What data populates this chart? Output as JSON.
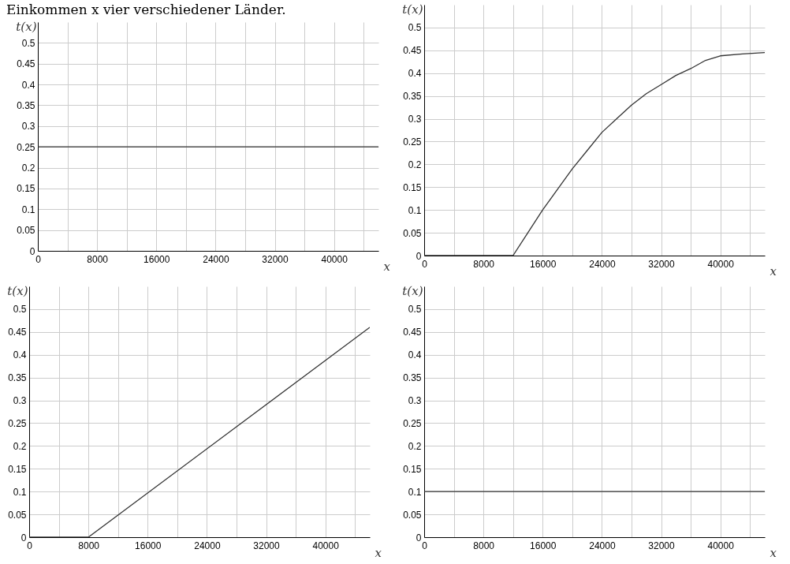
{
  "chart_data": [
    {
      "type": "line",
      "title": "Einkommen x vier verschiedener Länder.",
      "xlabel": "x",
      "ylabel": "t(x)",
      "x": [
        0,
        46000
      ],
      "values": [
        0.25,
        0.25
      ],
      "color": "#333333",
      "xlim": [
        0,
        46000
      ],
      "ylim": [
        0,
        0.55
      ],
      "xticks": [
        0,
        {
          "value": 4000,
          "label": null
        },
        8000,
        {
          "value": 12000,
          "label": null
        },
        16000,
        {
          "value": 20000,
          "label": null
        },
        24000,
        {
          "value": 28000,
          "label": null
        },
        32000,
        {
          "value": 36000,
          "label": null
        },
        40000,
        {
          "value": 44000,
          "label": null
        }
      ],
      "yticks": [
        0,
        0.05,
        0.1,
        0.15,
        0.2,
        0.25,
        0.3,
        0.35,
        0.4,
        0.45,
        0.5
      ],
      "grid": true
    },
    {
      "type": "line",
      "xlabel": "x",
      "ylabel": "t(x)",
      "x": [
        0,
        12000,
        14000,
        16000,
        18000,
        20000,
        22000,
        24000,
        26000,
        28000,
        30000,
        32000,
        34000,
        36000,
        38000,
        40000,
        43000,
        46000
      ],
      "values": [
        0,
        0,
        0.05,
        0.1,
        0.145,
        0.19,
        0.23,
        0.27,
        0.3,
        0.33,
        0.355,
        0.375,
        0.395,
        0.41,
        0.428,
        0.438,
        0.442,
        0.445
      ],
      "color": "#333333",
      "xlim": [
        0,
        46000
      ],
      "ylim": [
        0,
        0.55
      ],
      "xticks": [
        0,
        {
          "value": 4000,
          "label": null
        },
        8000,
        {
          "value": 12000,
          "label": null
        },
        16000,
        {
          "value": 20000,
          "label": null
        },
        24000,
        {
          "value": 28000,
          "label": null
        },
        32000,
        {
          "value": 36000,
          "label": null
        },
        40000,
        {
          "value": 44000,
          "label": null
        }
      ],
      "yticks": [
        0,
        0.05,
        0.1,
        0.15,
        0.2,
        0.25,
        0.3,
        0.35,
        0.4,
        0.45,
        0.5
      ],
      "grid": true
    },
    {
      "type": "line",
      "xlabel": "x",
      "ylabel": "t(x)",
      "x": [
        0,
        8000,
        46000
      ],
      "values": [
        0,
        0,
        0.46
      ],
      "color": "#333333",
      "xlim": [
        0,
        46000
      ],
      "ylim": [
        0,
        0.55
      ],
      "xticks": [
        0,
        {
          "value": 4000,
          "label": null
        },
        8000,
        {
          "value": 12000,
          "label": null
        },
        16000,
        {
          "value": 20000,
          "label": null
        },
        24000,
        {
          "value": 28000,
          "label": null
        },
        32000,
        {
          "value": 36000,
          "label": null
        },
        40000,
        {
          "value": 44000,
          "label": null
        }
      ],
      "yticks": [
        0,
        0.05,
        0.1,
        0.15,
        0.2,
        0.25,
        0.3,
        0.35,
        0.4,
        0.45,
        0.5
      ],
      "grid": true
    },
    {
      "type": "line",
      "xlabel": "x",
      "ylabel": "t(x)",
      "x": [
        0,
        46000
      ],
      "values": [
        0.1,
        0.1
      ],
      "color": "#333333",
      "xlim": [
        0,
        46000
      ],
      "ylim": [
        0,
        0.55
      ],
      "xticks": [
        0,
        {
          "value": 4000,
          "label": null
        },
        8000,
        {
          "value": 12000,
          "label": null
        },
        16000,
        {
          "value": 20000,
          "label": null
        },
        24000,
        {
          "value": 28000,
          "label": null
        },
        32000,
        {
          "value": 36000,
          "label": null
        },
        40000,
        {
          "value": 44000,
          "label": null
        }
      ],
      "yticks": [
        0,
        0.05,
        0.1,
        0.15,
        0.2,
        0.25,
        0.3,
        0.35,
        0.4,
        0.45,
        0.5
      ],
      "grid": true
    }
  ]
}
